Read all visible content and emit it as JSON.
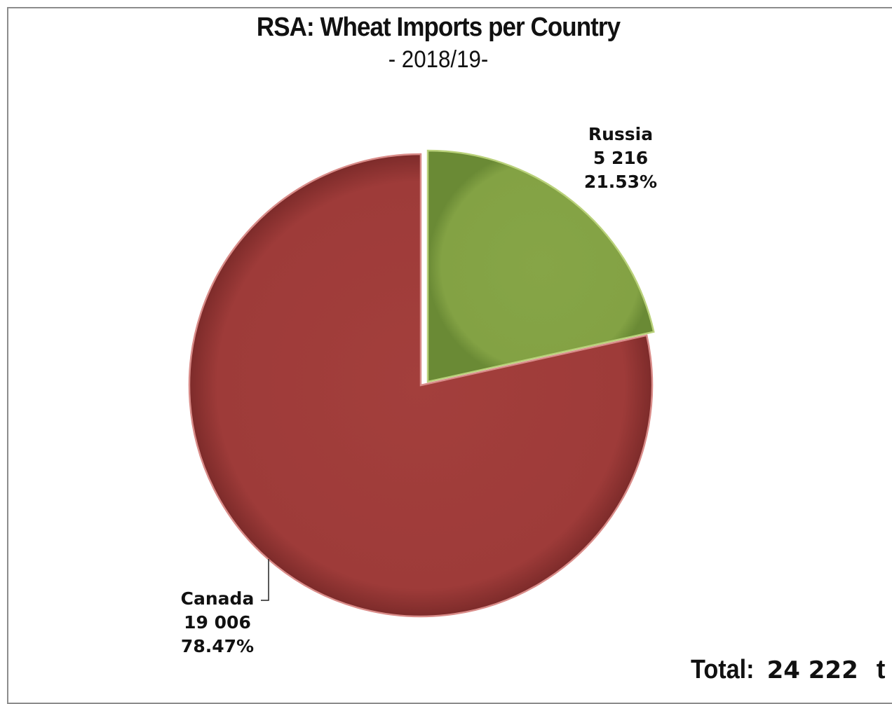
{
  "chart_data": {
    "type": "pie",
    "title": "RSA: Wheat Imports per Country",
    "subtitle": "- 2018/19-",
    "slices": [
      {
        "label": "Russia",
        "value": 5216,
        "value_text": "5 216",
        "percent": 21.53,
        "percent_text": "21.53%",
        "color": "#83a244"
      },
      {
        "label": "Canada",
        "value": 19006,
        "value_text": "19 006",
        "percent": 78.47,
        "percent_text": "78.47%",
        "color": "#9e3b39"
      }
    ],
    "total": {
      "label": "Total:",
      "value": 24222,
      "value_text": "24 222",
      "unit": "t"
    }
  }
}
